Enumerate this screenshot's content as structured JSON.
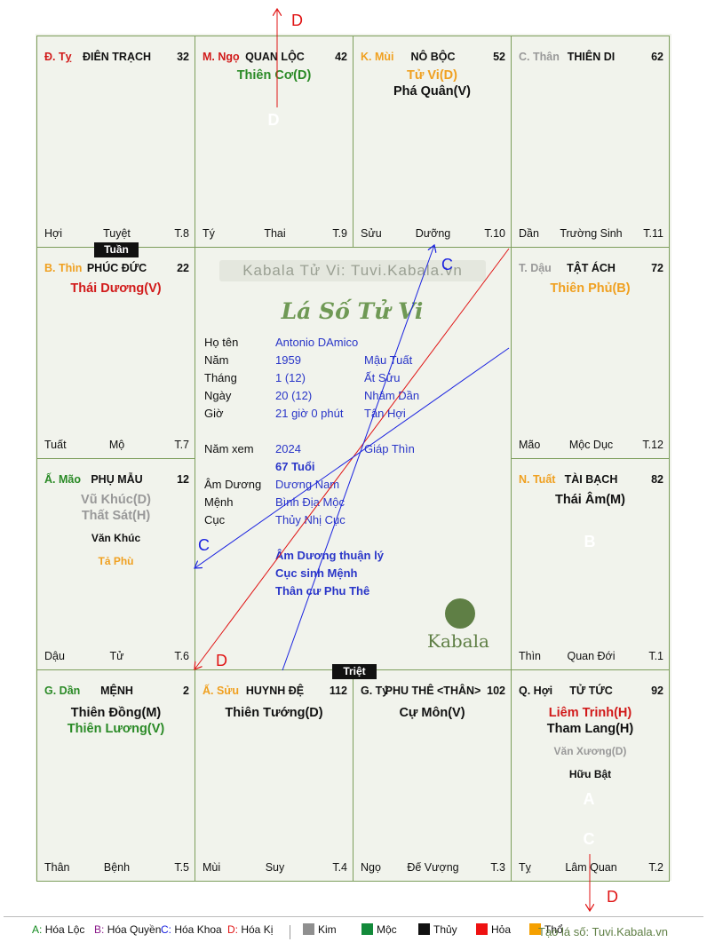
{
  "palaces": [
    {
      "id": "dien-trach",
      "branch": "Đ. Tỵ",
      "branch_color": "#d11a1a",
      "name": "ĐIÊN TRẠCH",
      "number": "32",
      "stars": [],
      "minor": [],
      "footer": [
        "Hợi",
        "Tuyệt",
        "T.8"
      ]
    },
    {
      "id": "quan-loc",
      "branch": "M. Ngọ",
      "branch_color": "#d11a1a",
      "name": "QUAN LỘC",
      "number": "42",
      "stars": [
        {
          "text": "Thiên Cơ(D)",
          "color": "#2a8a26"
        }
      ],
      "minor": [],
      "footer": [
        "Tý",
        "Thai",
        "T.9"
      ]
    },
    {
      "id": "no-boc",
      "branch": "K. Mùi",
      "branch_color": "#f0a020",
      "name": "NÔ BỘC",
      "number": "52",
      "stars": [
        {
          "text": "Tử Vi(D)",
          "color": "#f0a020"
        },
        {
          "text": "Phá Quân(V)",
          "color": "#111111"
        }
      ],
      "minor": [],
      "footer": [
        "Sửu",
        "Dưỡng",
        "T.10"
      ]
    },
    {
      "id": "thien-di",
      "branch": "C. Thân",
      "branch_color": "#999999",
      "name": "THIÊN DI",
      "number": "62",
      "stars": [],
      "minor": [],
      "footer": [
        "Dần",
        "Trường Sinh",
        "T.11"
      ]
    },
    {
      "id": "tat-ach",
      "branch": "T. Dậu",
      "branch_color": "#999999",
      "name": "TẬT ÁCH",
      "number": "72",
      "stars": [
        {
          "text": "Thiên Phủ(B)",
          "color": "#f0a020"
        }
      ],
      "minor": [],
      "footer": [
        "Mão",
        "Mộc Dục",
        "T.12"
      ]
    },
    {
      "id": "tai-bach",
      "branch": "N. Tuất",
      "branch_color": "#f0a020",
      "name": "TÀI BẠCH",
      "number": "82",
      "stars": [
        {
          "text": "Thái Âm(M)",
          "color": "#111111"
        }
      ],
      "minor": [],
      "footer": [
        "Thìn",
        "Quan Đới",
        "T.1"
      ]
    },
    {
      "id": "tu-tuc",
      "branch": "Q. Hợi",
      "branch_color": "#111111",
      "name": "TỬ TỨC",
      "number": "92",
      "stars": [
        {
          "text": "Liêm Trinh(H)",
          "color": "#d11a1a"
        },
        {
          "text": "Tham Lang(H)",
          "color": "#111111"
        }
      ],
      "minor": [
        {
          "text": "Văn Xương(D)",
          "color": "#999999"
        },
        {
          "text": "Hữu Bật",
          "color": "#111111"
        }
      ],
      "footer": [
        "Tỵ",
        "Lâm Quan",
        "T.2"
      ]
    },
    {
      "id": "phu-the",
      "branch": "G. Tý",
      "branch_color": "#111111",
      "name": "PHU THÊ <THÂN>",
      "number": "102",
      "stars": [
        {
          "text": "Cự Môn(V)",
          "color": "#111111"
        }
      ],
      "minor": [],
      "footer": [
        "Ngọ",
        "Đế Vượng",
        "T.3"
      ]
    },
    {
      "id": "huynh-de",
      "branch": "Ấ. Sửu",
      "branch_color": "#f0a020",
      "name": "HUYNH ĐỆ",
      "number": "112",
      "stars": [
        {
          "text": "Thiên Tướng(D)",
          "color": "#111111"
        }
      ],
      "minor": [],
      "footer": [
        "Mùi",
        "Suy",
        "T.4"
      ]
    },
    {
      "id": "menh",
      "branch": "G. Dần",
      "branch_color": "#2a8a26",
      "name": "MỆNH",
      "number": "2",
      "stars": [
        {
          "text": "Thiên Đồng(M)",
          "color": "#111111"
        },
        {
          "text": "Thiên Lương(V)",
          "color": "#2a8a26"
        }
      ],
      "minor": [],
      "footer": [
        "Thân",
        "Bệnh",
        "T.5"
      ]
    },
    {
      "id": "phu-mau",
      "branch": "Ấ. Mão",
      "branch_color": "#2a8a26",
      "name": "PHỤ MẪU",
      "number": "12",
      "stars": [
        {
          "text": "Vũ Khúc(D)",
          "color": "#999999"
        },
        {
          "text": "Thất Sát(H)",
          "color": "#999999"
        }
      ],
      "minor": [
        {
          "text": "Văn Khúc",
          "color": "#111111"
        },
        {
          "text": "Tả Phù",
          "color": "#f0a020"
        }
      ],
      "footer": [
        "Dậu",
        "Tử",
        "T.6"
      ]
    },
    {
      "id": "phuc-duc",
      "branch": "B. Thìn",
      "branch_color": "#f0a020",
      "name": "PHÚC ĐỨC",
      "number": "22",
      "stars": [
        {
          "text": "Thái Dương(V)",
          "color": "#d11a1a"
        }
      ],
      "minor": [],
      "footer": [
        "Tuất",
        "Mộ",
        "T.7"
      ]
    }
  ],
  "tags": {
    "tuan": "Tuần",
    "triet": "Triệt"
  },
  "center": {
    "watermark": "Kabala Tử Vi: Tuvi.Kabala.vn",
    "title": "Lá Số Tử Vi",
    "rows": [
      {
        "label": "Họ tên",
        "v1": "Antonio DAmico",
        "v2": ""
      },
      {
        "label": "Năm",
        "v1": "1959",
        "v2": "Mậu Tuất"
      },
      {
        "label": "Tháng",
        "v1": "1  (12)",
        "v2": "Ất Sửu"
      },
      {
        "label": "Ngày",
        "v1": "20  (12)",
        "v2": "Nhâm Dần"
      },
      {
        "label": "Giờ",
        "v1": "21 giờ 0 phút",
        "v2": "Tân Hợi"
      }
    ],
    "nam_xem_label": "Năm xem",
    "nam_xem": "2024",
    "nam_xem_can": "Giáp Thìn",
    "tuoi": "67 Tuổi",
    "rows2": [
      {
        "label": "Âm Dương",
        "v1": "Dương Nam"
      },
      {
        "label": "Mệnh",
        "v1": "Bình Địa Mộc"
      },
      {
        "label": "Cục",
        "v1": "Thủy Nhị Cục"
      }
    ],
    "notes": [
      "Âm Dương thuận lý",
      "Cục sinh Mệnh",
      "Thân cư Phu Thê"
    ],
    "brand": "Kabala"
  },
  "badges": [
    {
      "letter": "D",
      "color": "#e01414"
    },
    {
      "letter": "B",
      "color": "#8a1a8a"
    },
    {
      "letter": "A",
      "color": "#138a1f"
    },
    {
      "letter": "C",
      "color": "#1a22e0"
    }
  ],
  "arrow_labels": {
    "d_top": "D",
    "c_top": "C",
    "c_left": "C",
    "d_left": "D",
    "d_bottom": "D"
  },
  "legend": [
    {
      "key": "A:",
      "label": "Hóa Lộc",
      "color": "#138a1f"
    },
    {
      "key": "B:",
      "label": "Hóa Quyền",
      "color": "#8a1a8a"
    },
    {
      "key": "C:",
      "label": "Hóa Khoa",
      "color": "#1a22e0"
    },
    {
      "key": "D:",
      "label": "Hóa Kị",
      "color": "#e01414"
    }
  ],
  "elements": [
    {
      "label": "Kim",
      "color": "#8f8f8f"
    },
    {
      "label": "Mộc",
      "color": "#138a3a"
    },
    {
      "label": "Thủy",
      "color": "#111111"
    },
    {
      "label": "Hỏa",
      "color": "#ee1111"
    },
    {
      "label": "Thổ",
      "color": "#f5a000"
    }
  ],
  "credit": "Tạo lá số: Tuvi.Kabala.vn"
}
